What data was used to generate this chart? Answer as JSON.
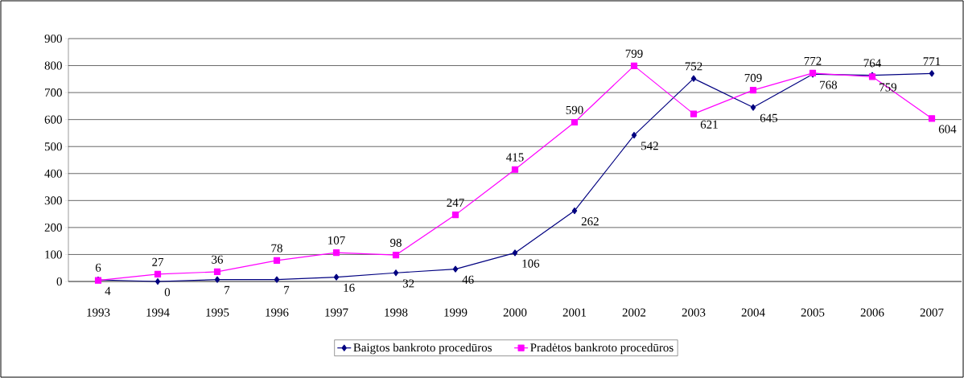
{
  "chart_data": {
    "type": "line",
    "categories": [
      "1993",
      "1994",
      "1995",
      "1996",
      "1997",
      "1998",
      "1999",
      "2000",
      "2001",
      "2002",
      "2003",
      "2004",
      "2005",
      "2006",
      "2007"
    ],
    "series": [
      {
        "name": "Baigtos bankroto procedūros",
        "color": "#000080",
        "marker": "diamond",
        "values": [
          6,
          0,
          7,
          7,
          16,
          32,
          46,
          106,
          262,
          542,
          752,
          645,
          768,
          764,
          771
        ]
      },
      {
        "name": "Pradėtos bankroto procedūros",
        "color": "#ff00ff",
        "marker": "square",
        "values": [
          4,
          27,
          36,
          78,
          107,
          98,
          247,
          415,
          590,
          799,
          621,
          709,
          772,
          759,
          604
        ]
      }
    ],
    "ylim": [
      0,
      900
    ],
    "yticks": [
      0,
      100,
      200,
      300,
      400,
      500,
      600,
      700,
      800,
      900
    ],
    "grid": "y",
    "legend": "bottom",
    "data_labels": true,
    "line_style": "solid"
  }
}
